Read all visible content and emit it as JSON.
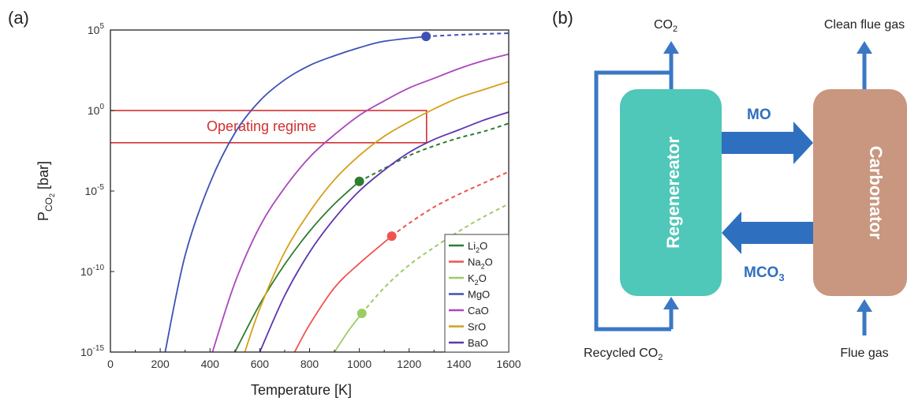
{
  "panel_a": {
    "label": "(a)",
    "xlabel": "Temperature [K]",
    "ylabel_main": "P",
    "ylabel_sub": "CO",
    "ylabel_subsub": "2",
    "ylabel_tail": " [bar]",
    "region_label": "Operating regime",
    "colors": {
      "axis": "#222222",
      "region": "#d32f2f"
    }
  },
  "chart_data": {
    "type": "line",
    "xlabel": "Temperature [K]",
    "ylabel": "P_CO2 [bar]",
    "xlim": [
      0,
      1600
    ],
    "ylim_log10": [
      -15,
      5
    ],
    "yscale": "log",
    "grid": false,
    "legend_position": "bottom-right",
    "x_ticks": [
      "0",
      "200",
      "400",
      "600",
      "800",
      "1000",
      "1200",
      "1400",
      "1600"
    ],
    "y_ticks": [
      {
        "base": "10",
        "exp": "5",
        "log": 5
      },
      {
        "base": "10",
        "exp": "0",
        "log": 0
      },
      {
        "base": "10",
        "exp": "-5",
        "log": -5
      },
      {
        "base": "10",
        "exp": "-10",
        "log": -10
      },
      {
        "base": "10",
        "exp": "-15",
        "log": -15
      }
    ],
    "operating_regime": {
      "label": "Operating regime",
      "T_range": [
        0,
        1270
      ],
      "P_range": [
        0.01,
        1
      ]
    },
    "series": [
      {
        "name": "Li2O",
        "label_main": "Li",
        "label_sub": "2",
        "label_tail": "O",
        "color": "#2e7d32",
        "points": [
          [
            500,
            -15
          ],
          [
            600,
            -12.03
          ],
          [
            700,
            -9.56
          ],
          [
            800,
            -7.5
          ],
          [
            900,
            -5.8
          ],
          [
            1000,
            -4.4
          ]
        ],
        "decomposition_T": 1000,
        "decomposition_logP": -4.4,
        "dashed": [
          [
            1000,
            -4.4
          ],
          [
            1100,
            -3.6
          ],
          [
            1200,
            -2.8
          ],
          [
            1300,
            -2.2
          ],
          [
            1400,
            -1.7
          ],
          [
            1500,
            -1.3
          ],
          [
            1600,
            -0.8
          ]
        ]
      },
      {
        "name": "Na2O",
        "label_main": "Na",
        "label_sub": "2",
        "label_tail": "O",
        "color": "#ef5350",
        "points": [
          [
            740,
            -15
          ],
          [
            800,
            -13.3
          ],
          [
            900,
            -11
          ],
          [
            1000,
            -9.5
          ],
          [
            1130,
            -7.8
          ]
        ],
        "decomposition_T": 1130,
        "decomposition_logP": -7.8,
        "dashed": [
          [
            1130,
            -7.8
          ],
          [
            1200,
            -7.0
          ],
          [
            1300,
            -6.0
          ],
          [
            1400,
            -5.2
          ],
          [
            1500,
            -4.5
          ],
          [
            1600,
            -3.8
          ]
        ]
      },
      {
        "name": "K2O",
        "label_main": "K",
        "label_sub": "2",
        "label_tail": "O",
        "color": "#9ccc65",
        "points": [
          [
            900,
            -15
          ],
          [
            960,
            -13.6
          ],
          [
            1010,
            -12.6
          ]
        ],
        "decomposition_T": 1010,
        "decomposition_logP": -12.6,
        "dashed": [
          [
            1010,
            -12.6
          ],
          [
            1100,
            -11.0
          ],
          [
            1200,
            -9.6
          ],
          [
            1300,
            -8.5
          ],
          [
            1400,
            -7.5
          ],
          [
            1500,
            -6.6
          ],
          [
            1600,
            -5.8
          ]
        ]
      },
      {
        "name": "MgO",
        "label_main": "MgO",
        "label_sub": "",
        "label_tail": "",
        "color": "#3f51b5",
        "points": [
          [
            220,
            -15
          ],
          [
            300,
            -9
          ],
          [
            400,
            -4.5
          ],
          [
            500,
            -1.4
          ],
          [
            600,
            0.6
          ],
          [
            700,
            1.9
          ],
          [
            800,
            2.8
          ],
          [
            900,
            3.4
          ],
          [
            1000,
            3.9
          ],
          [
            1100,
            4.3
          ],
          [
            1268,
            4.6
          ]
        ],
        "decomposition_T": 1268,
        "decomposition_logP": 4.6,
        "dashed": [
          [
            1268,
            4.6
          ],
          [
            1400,
            4.7
          ],
          [
            1600,
            4.8
          ]
        ]
      },
      {
        "name": "CaO",
        "label_main": "CaO",
        "label_sub": "",
        "label_tail": "",
        "color": "#ab47bc",
        "points": [
          [
            410,
            -15
          ],
          [
            500,
            -10.7
          ],
          [
            600,
            -7.2
          ],
          [
            700,
            -4.8
          ],
          [
            800,
            -2.9
          ],
          [
            900,
            -1.5
          ],
          [
            1000,
            -0.3
          ],
          [
            1100,
            0.6
          ],
          [
            1200,
            1.4
          ],
          [
            1300,
            2.0
          ],
          [
            1400,
            2.6
          ],
          [
            1500,
            3.1
          ],
          [
            1600,
            3.5
          ]
        ]
      },
      {
        "name": "SrO",
        "label_main": "SrO",
        "label_sub": "",
        "label_tail": "",
        "color": "#d4a017",
        "points": [
          [
            540,
            -15
          ],
          [
            600,
            -12.3
          ],
          [
            700,
            -8.8
          ],
          [
            800,
            -6.3
          ],
          [
            900,
            -4.3
          ],
          [
            1000,
            -2.8
          ],
          [
            1100,
            -1.6
          ],
          [
            1200,
            -0.7
          ],
          [
            1300,
            0.1
          ],
          [
            1400,
            0.8
          ],
          [
            1500,
            1.3
          ],
          [
            1600,
            1.8
          ]
        ]
      },
      {
        "name": "BaO",
        "label_main": "BaO",
        "label_sub": "",
        "label_tail": "",
        "color": "#5e35b1",
        "points": [
          [
            600,
            -15
          ],
          [
            700,
            -11.5
          ],
          [
            800,
            -8.8
          ],
          [
            900,
            -6.7
          ],
          [
            1000,
            -5.0
          ],
          [
            1100,
            -3.7
          ],
          [
            1200,
            -2.6
          ],
          [
            1300,
            -1.8
          ],
          [
            1400,
            -1.2
          ],
          [
            1500,
            -0.6
          ],
          [
            1600,
            -0.1
          ]
        ]
      }
    ]
  },
  "panel_b": {
    "label": "(b)",
    "regenerator": "Regenereator",
    "carbonator": "Carbonator",
    "mo_label": "MO",
    "mco_label_main": "MCO",
    "mco_label_sub": "3",
    "co2_top_main": "CO",
    "co2_top_sub": "2",
    "clean_flue_gas": "Clean flue gas",
    "recycled_main": "Recycled CO",
    "recycled_sub": "2",
    "flue_gas": "Flue gas",
    "colors": {
      "regenerator": "#4fc7b9",
      "carbonator": "#c9977f",
      "arrow": "#3a78c4",
      "arrow_dark": "#2f6fbf",
      "text_blue": "#2f6fbf"
    }
  }
}
